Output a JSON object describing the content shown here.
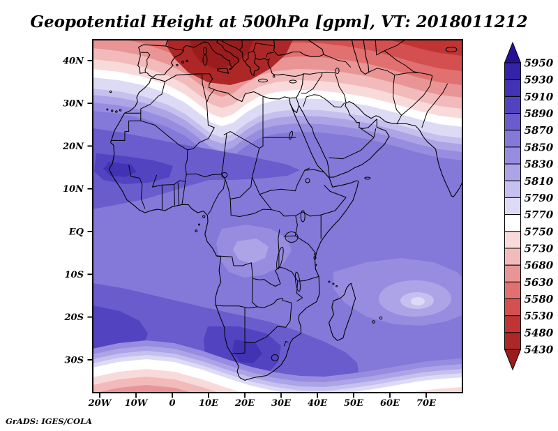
{
  "title": "Geopotential Height at 500hPa [gpm], VT: 2018011212",
  "credit": "GrADS: IGES/COLA",
  "chart_data": {
    "type": "heatmap",
    "subtype": "filled-contour-weather-map",
    "title": "Geopotential Height at 500hPa [gpm], VT: 2018011212",
    "variable": "Geopotential Height",
    "pressure_level": "500hPa",
    "units": "gpm",
    "valid_time": "2018011212",
    "region": "Africa, Mediterranean, Arabian Peninsula, western Indian Ocean",
    "grid": false,
    "legend_position": "right-colorbar",
    "x_axis": {
      "ticks": [
        {
          "label": "20W",
          "lon": -20
        },
        {
          "label": "10W",
          "lon": -10
        },
        {
          "label": "0",
          "lon": 0
        },
        {
          "label": "10E",
          "lon": 10
        },
        {
          "label": "20E",
          "lon": 20
        },
        {
          "label": "30E",
          "lon": 30
        },
        {
          "label": "40E",
          "lon": 40
        },
        {
          "label": "50E",
          "lon": 50
        },
        {
          "label": "60E",
          "lon": 60
        },
        {
          "label": "70E",
          "lon": 70
        }
      ],
      "range_deg_lon": [
        -22,
        80
      ]
    },
    "y_axis": {
      "ticks": [
        {
          "label": "40N",
          "lat": 40
        },
        {
          "label": "30N",
          "lat": 30
        },
        {
          "label": "20N",
          "lat": 20
        },
        {
          "label": "10N",
          "lat": 10
        },
        {
          "label": "EQ",
          "lat": 0
        },
        {
          "label": "10S",
          "lat": -10
        },
        {
          "label": "20S",
          "lat": -20
        },
        {
          "label": "30S",
          "lat": -30
        }
      ],
      "range_deg_lat": [
        -38,
        45
      ]
    },
    "colorbar": {
      "levels_gpm": [
        5430,
        5480,
        5530,
        5580,
        5630,
        5680,
        5730,
        5750,
        5770,
        5790,
        5810,
        5830,
        5850,
        5870,
        5890,
        5910,
        5930,
        5950
      ],
      "labels_top_to_bottom": [
        "5950",
        "5930",
        "5910",
        "5890",
        "5870",
        "5850",
        "5830",
        "5810",
        "5790",
        "5770",
        "5750",
        "5730",
        "5680",
        "5630",
        "5580",
        "5530",
        "5480",
        "5430"
      ],
      "colors_top_to_bottom": [
        "#241194",
        "#3322aa",
        "#4233b5",
        "#5243c1",
        "#6a5ccd",
        "#8478d8",
        "#978cdf",
        "#aca4e7",
        "#c6c0ef",
        "#dddaf6",
        "#ffffff",
        "#f9dada",
        "#f2baba",
        "#ea9595",
        "#e17070",
        "#d44f4f",
        "#c13434",
        "#ae2727",
        "#9b1c1c"
      ]
    },
    "field_features": [
      "Deep trough with heights below 5480 gpm centered over the central Mediterranean near 10-20E, 38-45N",
      "White transition band (5750-5770 gpm) near 30N running from the Atlantic across Egypt toward Arabia, dipping to ~25N over Algeria and ~22N at the eastern edge",
      "Ridge of 5870-5910 gpm across the western Sahel (10-20N, 20W-30E)",
      "Broad 5850-5870 gpm field over tropical Africa and the Indian Ocean",
      "Local lighter cell of 5790-5810 gpm east of Madagascar near 57E, 17S",
      "5870-5910 gpm band over southern Africa and the SE Atlantic (20-35S)",
      "Heights falling through 5750 gpm to below 5680 gpm along the southern map edge (~37S), strongest in the SW and SE corners"
    ]
  }
}
